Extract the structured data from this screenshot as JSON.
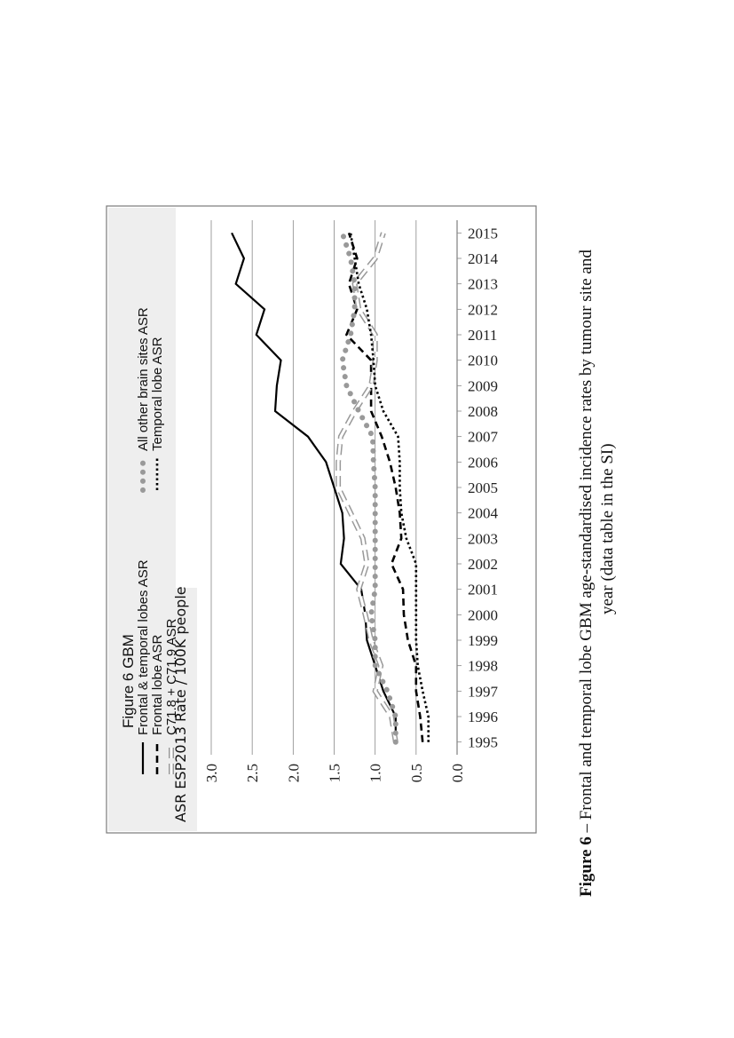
{
  "chart_data": {
    "type": "line",
    "title": "Figure 6  GBM",
    "ylabel": "ASR  ESP2013  Rate / 100K  people",
    "xlabel": "",
    "ylim": [
      0,
      3
    ],
    "yticks": [
      "0.0",
      "0.5",
      "1.0",
      "1.5",
      "2.0",
      "2.5",
      "3.0"
    ],
    "x": [
      "1995",
      "1996",
      "1997",
      "1998",
      "1999",
      "2000",
      "2001",
      "2002",
      "2003",
      "2004",
      "2005",
      "2006",
      "2007",
      "2008",
      "2009",
      "2010",
      "2011",
      "2012",
      "2013",
      "2014",
      "2015"
    ],
    "grid": true,
    "legend_position": "top",
    "series": [
      {
        "name": "Frontal & temporal lobes ASR",
        "color": "#000000",
        "style": "solid",
        "values": [
          0.75,
          0.75,
          0.9,
          1.0,
          1.1,
          1.12,
          1.17,
          1.42,
          1.38,
          1.4,
          1.5,
          1.6,
          1.82,
          2.22,
          2.2,
          2.15,
          2.45,
          2.35,
          2.7,
          2.6,
          2.75
        ]
      },
      {
        "name": "Frontal lobe ASR",
        "color": "#000000",
        "style": "dashed",
        "values": [
          0.42,
          0.45,
          0.5,
          0.5,
          0.6,
          0.65,
          0.66,
          0.8,
          0.68,
          0.7,
          0.75,
          0.82,
          0.92,
          1.05,
          1.05,
          1.05,
          1.35,
          1.22,
          1.32,
          1.22,
          1.32
        ]
      },
      {
        "name": "C71.8 + C71.9 ASR",
        "color": "#999999",
        "style": "hollow-dash",
        "values": [
          0.75,
          0.8,
          1.0,
          0.93,
          1.05,
          1.12,
          1.2,
          1.1,
          1.15,
          1.3,
          1.45,
          1.45,
          1.42,
          1.25,
          1.05,
          1.0,
          1.0,
          1.2,
          1.25,
          1.0,
          0.9
        ]
      },
      {
        "name": "All other brain sites ASR",
        "color": "#999999",
        "style": "dotted-round",
        "values": [
          0.75,
          0.75,
          0.85,
          1.0,
          1.0,
          1.05,
          1.0,
          1.0,
          1.0,
          1.0,
          1.0,
          1.02,
          1.03,
          1.2,
          1.35,
          1.4,
          1.3,
          1.25,
          1.25,
          1.3,
          1.4
        ]
      },
      {
        "name": "Temporal lobe ASR",
        "color": "#000000",
        "style": "dotted",
        "values": [
          0.35,
          0.35,
          0.42,
          0.48,
          0.5,
          0.5,
          0.5,
          0.5,
          0.62,
          0.68,
          0.7,
          0.7,
          0.72,
          0.9,
          1.0,
          1.02,
          1.05,
          1.1,
          1.2,
          1.25,
          1.3
        ]
      }
    ]
  },
  "caption": {
    "label": "Figure 6",
    "line1": " – Frontal and temporal lobe GBM age-standardised incidence rates by tumour site and",
    "line2": "year (data table in the SI)"
  },
  "colors": {
    "frame": "#7a7a7a",
    "grid": "#888888",
    "panel": "#eeeeee"
  }
}
